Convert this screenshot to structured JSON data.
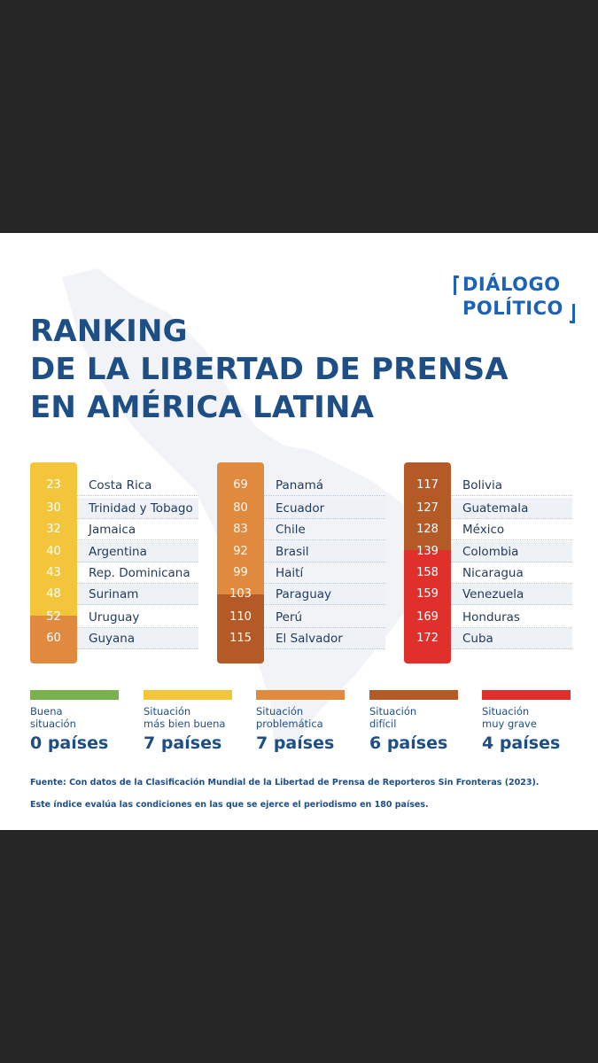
{
  "logo": {
    "line1": "DIÁLOGO",
    "line2": "POLÍTICO"
  },
  "title": {
    "line1": "RANKING",
    "line2": "DE LA LIBERTAD DE PRENSA",
    "line3": "EN AMÉRICA LATINA"
  },
  "colors": {
    "buena": "#7ab04d",
    "mas_bien_buena": "#f2c53a",
    "problematica": "#e08a3f",
    "dificil": "#b35a26",
    "muy_grave": "#e0302b",
    "title_blue": "#1d4f86",
    "logo_blue": "#1c63b7"
  },
  "columns": [
    {
      "rows": [
        {
          "rank": "23",
          "country": "Costa Rica",
          "category": "mas_bien_buena"
        },
        {
          "rank": "30",
          "country": "Trinidad y Tobago",
          "category": "mas_bien_buena"
        },
        {
          "rank": "32",
          "country": "Jamaica",
          "category": "mas_bien_buena"
        },
        {
          "rank": "40",
          "country": "Argentina",
          "category": "mas_bien_buena"
        },
        {
          "rank": "43",
          "country": "Rep. Dominicana",
          "category": "mas_bien_buena"
        },
        {
          "rank": "48",
          "country": "Surinam",
          "category": "mas_bien_buena"
        },
        {
          "rank": "52",
          "country": "Uruguay",
          "category": "mas_bien_buena"
        },
        {
          "rank": "60",
          "country": "Guyana",
          "category": "problematica"
        }
      ]
    },
    {
      "rows": [
        {
          "rank": "69",
          "country": "Panamá",
          "category": "problematica"
        },
        {
          "rank": "80",
          "country": "Ecuador",
          "category": "problematica"
        },
        {
          "rank": "83",
          "country": "Chile",
          "category": "problematica"
        },
        {
          "rank": "92",
          "country": "Brasil",
          "category": "problematica"
        },
        {
          "rank": "99",
          "country": "Haití",
          "category": "problematica"
        },
        {
          "rank": "103",
          "country": "Paraguay",
          "category": "problematica"
        },
        {
          "rank": "110",
          "country": "Perú",
          "category": "dificil"
        },
        {
          "rank": "115",
          "country": "El Salvador",
          "category": "dificil"
        }
      ]
    },
    {
      "rows": [
        {
          "rank": "117",
          "country": "Bolivia",
          "category": "dificil"
        },
        {
          "rank": "127",
          "country": "Guatemala",
          "category": "dificil"
        },
        {
          "rank": "128",
          "country": "México",
          "category": "dificil"
        },
        {
          "rank": "139",
          "country": "Colombia",
          "category": "dificil"
        },
        {
          "rank": "158",
          "country": "Nicaragua",
          "category": "muy_grave"
        },
        {
          "rank": "159",
          "country": "Venezuela",
          "category": "muy_grave"
        },
        {
          "rank": "169",
          "country": "Honduras",
          "category": "muy_grave"
        },
        {
          "rank": "172",
          "country": "Cuba",
          "category": "muy_grave"
        }
      ]
    }
  ],
  "legend": [
    {
      "category": "buena",
      "label": "Buena\nsituación",
      "count": "0 países"
    },
    {
      "category": "mas_bien_buena",
      "label": "Situación\nmás bien buena",
      "count": "7 países"
    },
    {
      "category": "problematica",
      "label": "Situación\nproblemática",
      "count": "7 países"
    },
    {
      "category": "dificil",
      "label": "Situación\ndifícil",
      "count": "6 países"
    },
    {
      "category": "muy_grave",
      "label": "Situación\nmuy grave",
      "count": "4 países"
    }
  ],
  "source": "Fuente: Con datos de la Clasificación Mundial de la Libertad de Prensa de Reporteros Sin Fronteras (2023).",
  "note": "Este índice evalúa las condiciones en las que se ejerce el periodismo en 180 países."
}
